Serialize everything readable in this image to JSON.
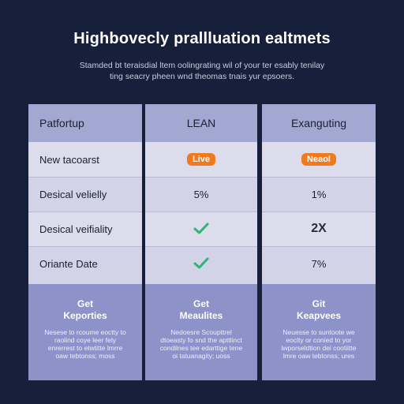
{
  "header": {
    "title": "Highbovecly prallluation ealtmets",
    "subtitle": "Stamded bt teraisdial ltem oolingrating wil of your ter esably tenilay ting seacry pheen wnd theomas tnais yur epsoers."
  },
  "columns": [
    {
      "header": "Patfortup",
      "rows": [
        "New tacoarst",
        "Desical velielly",
        "Desical veifiality",
        "Oriante Date"
      ],
      "footer": {
        "title": "Get\nKeporties",
        "body": "Nesese to rcoume eoctty to raolind coye leer fely enrerrest to etwtitte lmrre oaw tebtonss; moss"
      }
    },
    {
      "header": "LEAN",
      "badge": "Live",
      "rows": [
        "",
        "5%",
        "",
        ""
      ],
      "checks": [
        false,
        false,
        true,
        true
      ],
      "footer": {
        "title": "Get\nMeaulites",
        "body": "Nedoesre Scoupttrel dtoeasty fo snd the apttlinct condilnes tee edarttige tene oi tatuanagity; uoss"
      }
    },
    {
      "header": "Exanguting",
      "badge": "Neaol",
      "rows": [
        "",
        "1%",
        "2X",
        "7%"
      ],
      "footer": {
        "title": "Git\nKeapvees",
        "body": "Neuesse to suntoote we eoclty or conied to yor lwporseldtion dei cootiitte lmre oaw tebtonss; ures"
      }
    }
  ],
  "colors": {
    "background": "#17203a",
    "header_band": "#a3a8d3",
    "footer_band": "#8d92c8",
    "badge": "#f07a1e",
    "check": "#2bb673"
  },
  "icons": {
    "check": "check-icon"
  }
}
